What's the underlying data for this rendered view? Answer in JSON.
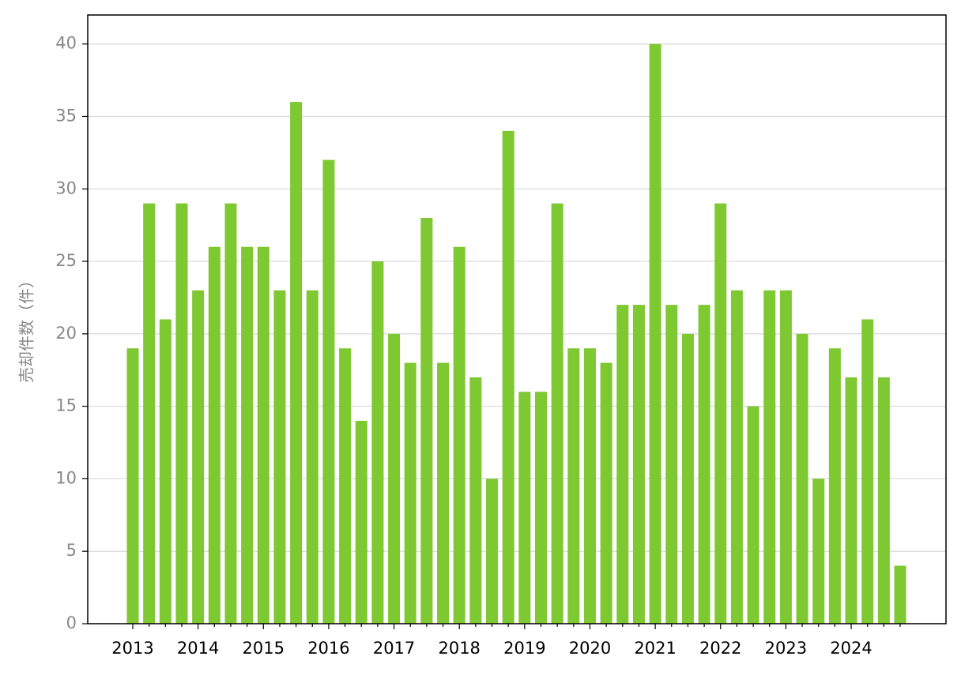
{
  "chart_data": {
    "type": "bar",
    "ylabel": "売却件数（件）",
    "categories": [
      "2013",
      null,
      null,
      null,
      "2014",
      null,
      null,
      null,
      "2015",
      null,
      null,
      null,
      "2016",
      null,
      null,
      null,
      "2017",
      null,
      null,
      null,
      "2018",
      null,
      null,
      null,
      "2019",
      null,
      null,
      null,
      "2020",
      null,
      null,
      null,
      "2021",
      null,
      null,
      null,
      "2022",
      null,
      null,
      null,
      "2023",
      null,
      null,
      null,
      "2024",
      null,
      null,
      null
    ],
    "values": [
      19,
      29,
      21,
      29,
      23,
      26,
      29,
      26,
      26,
      23,
      36,
      23,
      32,
      19,
      14,
      25,
      20,
      18,
      28,
      18,
      26,
      17,
      10,
      34,
      16,
      16,
      29,
      19,
      19,
      18,
      22,
      22,
      40,
      22,
      20,
      22,
      29,
      23,
      15,
      23,
      23,
      20,
      10,
      19,
      17,
      21,
      17,
      4
    ],
    "color": "#7ec832",
    "ylim": [
      0,
      42
    ],
    "yticks": [
      0,
      5,
      10,
      15,
      20,
      25,
      30,
      35,
      40
    ],
    "grid": true
  }
}
